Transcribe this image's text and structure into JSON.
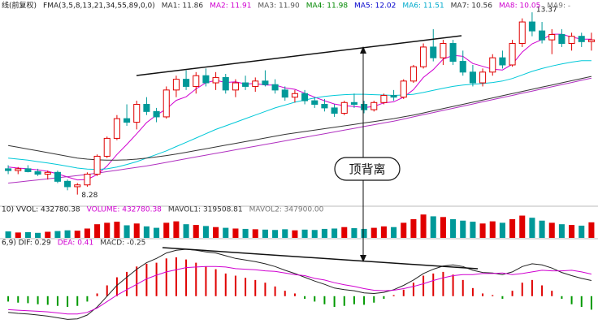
{
  "chart_data": {
    "type": "candlestick",
    "title": "线(前复权)",
    "indicator": "FMA(3,5,8,13,21,34,55,89,0,0)",
    "legend": [
      {
        "text": "MA1: 11.86",
        "color": "#333333"
      },
      {
        "text": "MA2: 11.91",
        "color": "#d000d0"
      },
      {
        "text": "MA3: 11.90",
        "color": "#555555"
      },
      {
        "text": "MA4: 11.98",
        "color": "#008800"
      },
      {
        "text": "MA5: 12.02",
        "color": "#0000cc"
      },
      {
        "text": "MA6: 11.51",
        "color": "#00aacc"
      },
      {
        "text": "MA7: 10.56",
        "color": "#333333"
      },
      {
        "text": "MA8: 10.05",
        "color": "#d000d0"
      },
      {
        "text": "MA9: -",
        "color": "#777777"
      }
    ],
    "up_color": "#e00000",
    "down_color": "#009999",
    "ylim": [
      8.0,
      13.6
    ],
    "open": [
      9.0,
      8.95,
      9.0,
      8.92,
      8.85,
      8.9,
      8.65,
      8.5,
      8.55,
      8.85,
      9.35,
      9.85,
      10.4,
      10.3,
      10.8,
      10.6,
      10.45,
      11.2,
      11.5,
      11.3,
      11.6,
      11.4,
      11.55,
      11.2,
      11.4,
      11.3,
      11.45,
      11.35,
      11.2,
      11.0,
      11.1,
      10.9,
      10.8,
      10.7,
      10.55,
      10.85,
      10.8,
      10.65,
      10.85,
      11.05,
      11.0,
      11.45,
      11.85,
      12.4,
      12.1,
      12.5,
      12.0,
      11.7,
      11.4,
      11.7,
      12.1,
      11.9,
      12.5,
      13.1,
      12.85,
      12.6,
      12.75,
      12.5,
      12.7,
      12.55
    ],
    "high": [
      9.1,
      9.05,
      9.1,
      9.0,
      8.95,
      8.95,
      8.7,
      8.6,
      8.9,
      9.4,
      9.9,
      10.5,
      10.8,
      10.9,
      11.0,
      10.7,
      11.3,
      11.6,
      11.75,
      11.7,
      11.8,
      11.7,
      11.65,
      11.5,
      11.6,
      11.55,
      11.75,
      11.5,
      11.3,
      11.2,
      11.2,
      11.0,
      10.95,
      10.8,
      10.9,
      11.1,
      10.9,
      10.9,
      11.1,
      11.2,
      11.5,
      11.9,
      12.5,
      12.9,
      12.6,
      12.6,
      12.3,
      11.9,
      11.8,
      12.2,
      12.3,
      12.6,
      13.2,
      13.37,
      13.1,
      12.9,
      12.9,
      12.8,
      12.8,
      12.8
    ],
    "low": [
      8.85,
      8.85,
      8.9,
      8.8,
      8.7,
      8.6,
      8.4,
      8.28,
      8.5,
      8.8,
      9.3,
      9.8,
      10.2,
      10.1,
      10.5,
      10.3,
      10.4,
      11.0,
      11.2,
      11.1,
      11.3,
      11.2,
      11.1,
      11.0,
      11.2,
      11.15,
      11.3,
      11.1,
      10.9,
      10.85,
      10.8,
      10.7,
      10.6,
      10.45,
      10.5,
      10.7,
      10.55,
      10.6,
      10.8,
      10.9,
      10.95,
      11.4,
      11.8,
      12.0,
      11.9,
      11.9,
      11.6,
      11.3,
      11.3,
      11.6,
      11.8,
      11.85,
      12.4,
      12.7,
      12.5,
      12.2,
      12.4,
      12.3,
      12.4,
      12.3
    ],
    "close": [
      8.95,
      9.0,
      8.92,
      8.85,
      8.9,
      8.65,
      8.5,
      8.55,
      8.85,
      9.35,
      9.85,
      10.4,
      10.3,
      10.8,
      10.6,
      10.45,
      11.2,
      11.5,
      11.3,
      11.6,
      11.4,
      11.55,
      11.2,
      11.4,
      11.3,
      11.45,
      11.35,
      11.2,
      11.0,
      11.1,
      10.9,
      10.8,
      10.7,
      10.55,
      10.85,
      10.8,
      10.65,
      10.85,
      11.05,
      11.0,
      11.45,
      11.85,
      12.4,
      12.1,
      12.5,
      12.0,
      11.7,
      11.4,
      11.7,
      12.1,
      11.9,
      12.5,
      13.1,
      12.85,
      12.6,
      12.75,
      12.5,
      12.7,
      12.55,
      12.6
    ],
    "ma_lines": [
      {
        "color": "#d000d0",
        "values": [
          9.05,
          9.02,
          9.0,
          8.97,
          8.93,
          8.86,
          8.77,
          8.69,
          8.7,
          8.84,
          9.08,
          9.4,
          9.68,
          9.98,
          10.29,
          10.5,
          10.67,
          10.91,
          11.01,
          11.23,
          11.4,
          11.47,
          11.41,
          11.43,
          11.37,
          11.38,
          11.34,
          11.34,
          11.26,
          11.22,
          11.11,
          11.0,
          10.9,
          10.81,
          10.76,
          10.74,
          10.71,
          10.74,
          10.84,
          10.87,
          11.0,
          11.21,
          11.55,
          11.77,
          12.06,
          12.17,
          12.14,
          11.94,
          11.86,
          11.78,
          11.76,
          11.92,
          12.26,
          12.49,
          12.61,
          12.76,
          12.76,
          12.68,
          12.62,
          12.62
        ]
      },
      {
        "color": "#00c8d8",
        "values": [
          9.3,
          9.27,
          9.24,
          9.2,
          9.16,
          9.12,
          9.07,
          9.02,
          8.99,
          8.98,
          9.0,
          9.05,
          9.12,
          9.2,
          9.3,
          9.4,
          9.5,
          9.62,
          9.74,
          9.86,
          9.98,
          10.1,
          10.2,
          10.3,
          10.4,
          10.5,
          10.6,
          10.7,
          10.78,
          10.86,
          10.92,
          10.98,
          11.02,
          11.05,
          11.07,
          11.08,
          11.08,
          11.07,
          11.06,
          11.05,
          11.06,
          11.08,
          11.13,
          11.19,
          11.25,
          11.3,
          11.34,
          11.36,
          11.38,
          11.41,
          11.45,
          11.52,
          11.62,
          11.72,
          11.8,
          11.87,
          11.93,
          11.98,
          12.02,
          12.02
        ]
      },
      {
        "color": "#b030c0",
        "values": [
          8.6,
          8.63,
          8.66,
          8.69,
          8.72,
          8.75,
          8.78,
          8.81,
          8.84,
          8.88,
          8.92,
          8.96,
          9.0,
          9.04,
          9.08,
          9.13,
          9.18,
          9.23,
          9.28,
          9.33,
          9.38,
          9.43,
          9.48,
          9.53,
          9.58,
          9.63,
          9.68,
          9.73,
          9.78,
          9.83,
          9.88,
          9.93,
          9.98,
          10.03,
          10.08,
          10.13,
          10.18,
          10.23,
          10.28,
          10.33,
          10.39,
          10.45,
          10.51,
          10.57,
          10.63,
          10.69,
          10.75,
          10.81,
          10.87,
          10.93,
          10.99,
          11.05,
          11.11,
          11.17,
          11.23,
          11.29,
          11.35,
          11.41,
          11.47,
          11.53
        ]
      },
      {
        "color": "#333333",
        "values": [
          9.65,
          9.6,
          9.55,
          9.5,
          9.45,
          9.4,
          9.35,
          9.3,
          9.27,
          9.25,
          9.24,
          9.24,
          9.25,
          9.27,
          9.3,
          9.33,
          9.37,
          9.41,
          9.46,
          9.51,
          9.56,
          9.61,
          9.66,
          9.71,
          9.76,
          9.81,
          9.86,
          9.91,
          9.96,
          10.0,
          10.04,
          10.08,
          10.12,
          10.16,
          10.2,
          10.24,
          10.28,
          10.32,
          10.36,
          10.4,
          10.45,
          10.5,
          10.56,
          10.62,
          10.68,
          10.74,
          10.8,
          10.86,
          10.92,
          10.98,
          11.04,
          11.1,
          11.16,
          11.22,
          11.28,
          11.34,
          11.4,
          11.46,
          11.52,
          11.58
        ]
      }
    ],
    "annotations": [
      {
        "text": "13.37",
        "index": 53,
        "value": 13.37
      },
      {
        "text": "8.28",
        "index": 7,
        "value": 8.28
      }
    ],
    "callout": "顶背离",
    "volume": {
      "legend": [
        {
          "text": "10) VVOL: 432780.38",
          "color": "#222222"
        },
        {
          "text": "VOLUME: 432780.38",
          "color": "#d000d0"
        },
        {
          "text": "MAVOL1: 319508.81",
          "color": "#333333"
        },
        {
          "text": "MAVOL2: 347900.00",
          "color": "#777777"
        }
      ],
      "ylim": [
        0,
        700000
      ],
      "values": [
        180000,
        150000,
        160000,
        140000,
        170000,
        190000,
        210000,
        200000,
        260000,
        380000,
        420000,
        450000,
        350000,
        400000,
        320000,
        280000,
        420000,
        460000,
        380000,
        360000,
        330000,
        300000,
        280000,
        260000,
        250000,
        240000,
        230000,
        220000,
        240000,
        210000,
        230000,
        220000,
        250000,
        260000,
        300000,
        270000,
        250000,
        280000,
        320000,
        300000,
        420000,
        520000,
        650000,
        600000,
        580000,
        520000,
        480000,
        450000,
        400000,
        460000,
        420000,
        520000,
        620000,
        560000,
        480000,
        420000,
        380000,
        360000,
        340000,
        432780.38
      ]
    },
    "macd": {
      "legend": [
        {
          "text": "6,9) DIF: 0.29",
          "color": "#222222"
        },
        {
          "text": "DEA: 0.41",
          "color": "#d000d0"
        },
        {
          "text": "MACD: -0.25",
          "color": "#333333"
        }
      ],
      "ylim": [
        -0.5,
        0.9
      ],
      "pos_color": "#e00000",
      "neg_color": "#009900",
      "histogram": [
        -0.1,
        -0.12,
        -0.13,
        -0.15,
        -0.16,
        -0.18,
        -0.2,
        -0.18,
        -0.1,
        0.05,
        0.2,
        0.35,
        0.45,
        0.55,
        0.6,
        0.62,
        0.7,
        0.72,
        0.68,
        0.62,
        0.55,
        0.5,
        0.42,
        0.38,
        0.34,
        0.3,
        0.25,
        0.18,
        0.1,
        0.05,
        -0.05,
        -0.1,
        -0.15,
        -0.2,
        -0.18,
        -0.15,
        -0.16,
        -0.12,
        -0.05,
        0.02,
        0.12,
        0.25,
        0.38,
        0.42,
        0.45,
        0.4,
        0.3,
        0.15,
        0.05,
        0.02,
        -0.05,
        0.1,
        0.25,
        0.3,
        0.2,
        0.1,
        -0.05,
        -0.15,
        -0.2,
        -0.25
      ],
      "dif": {
        "color": "#222222",
        "values": [
          -0.3,
          -0.32,
          -0.33,
          -0.35,
          -0.37,
          -0.4,
          -0.43,
          -0.42,
          -0.35,
          -0.2,
          0.0,
          0.2,
          0.35,
          0.5,
          0.62,
          0.7,
          0.8,
          0.85,
          0.87,
          0.85,
          0.82,
          0.8,
          0.75,
          0.7,
          0.67,
          0.64,
          0.6,
          0.55,
          0.48,
          0.42,
          0.35,
          0.28,
          0.22,
          0.15,
          0.12,
          0.1,
          0.06,
          0.05,
          0.07,
          0.12,
          0.2,
          0.3,
          0.42,
          0.5,
          0.56,
          0.58,
          0.55,
          0.48,
          0.44,
          0.43,
          0.4,
          0.45,
          0.55,
          0.6,
          0.58,
          0.52,
          0.44,
          0.38,
          0.33,
          0.29
        ]
      },
      "dea": {
        "color": "#d000d0",
        "values": [
          -0.25,
          -0.26,
          -0.27,
          -0.28,
          -0.29,
          -0.31,
          -0.33,
          -0.33,
          -0.3,
          -0.22,
          -0.1,
          0.02,
          0.12,
          0.22,
          0.32,
          0.39,
          0.45,
          0.49,
          0.53,
          0.54,
          0.55,
          0.55,
          0.54,
          0.51,
          0.5,
          0.49,
          0.47,
          0.46,
          0.43,
          0.4,
          0.38,
          0.33,
          0.3,
          0.25,
          0.21,
          0.18,
          0.14,
          0.11,
          0.1,
          0.11,
          0.14,
          0.18,
          0.23,
          0.29,
          0.34,
          0.38,
          0.4,
          0.4,
          0.42,
          0.42,
          0.43,
          0.4,
          0.42,
          0.45,
          0.48,
          0.47,
          0.47,
          0.48,
          0.45,
          0.41
        ]
      }
    }
  }
}
